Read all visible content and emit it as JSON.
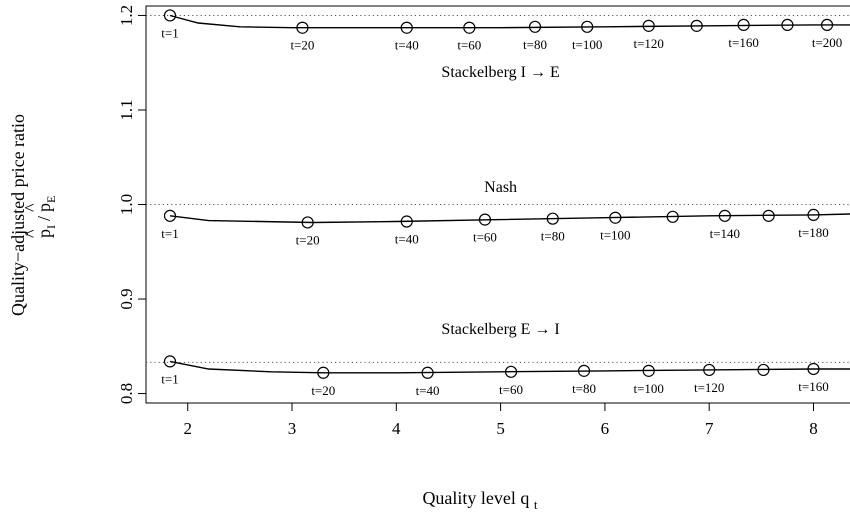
{
  "chart_data": {
    "type": "line",
    "xlabel": "Quality level",
    "xlabel_sub": "t",
    "xlabel_var": "q",
    "ylabel_line1": "Quality−adjusted price ratio",
    "ylabel_num": "p",
    "ylabel_num_sub": "I",
    "ylabel_den": "p",
    "ylabel_den_sub": "E",
    "hat_glyph": "^",
    "slash_glyph": "/",
    "xlim": [
      1.6,
      8.35
    ],
    "ylim": [
      0.79,
      1.21
    ],
    "xticks": [
      2,
      3,
      4,
      5,
      6,
      7,
      8
    ],
    "yticks": [
      0.8,
      0.9,
      1.0,
      1.1,
      1.2
    ],
    "ytick_labels": [
      "0.8",
      "0.9",
      "1.0",
      "1.1",
      "1.2"
    ],
    "reference_lines": [
      1.2,
      1.0,
      0.833
    ],
    "series": [
      {
        "name": "Stackelberg I → E",
        "ref": 1.2,
        "curve": [
          [
            1.83,
            1.2
          ],
          [
            2.1,
            1.192
          ],
          [
            2.5,
            1.188
          ],
          [
            3.0,
            1.187
          ],
          [
            3.5,
            1.187
          ],
          [
            4.0,
            1.187
          ],
          [
            5.0,
            1.187
          ],
          [
            6.0,
            1.188
          ],
          [
            7.0,
            1.189
          ],
          [
            8.0,
            1.19
          ],
          [
            8.35,
            1.19
          ]
        ],
        "points": [
          [
            1.83,
            1.2
          ],
          [
            3.1,
            1.187
          ],
          [
            4.1,
            1.187
          ],
          [
            4.7,
            1.187
          ],
          [
            5.33,
            1.188
          ],
          [
            5.83,
            1.188
          ],
          [
            6.42,
            1.189
          ],
          [
            6.88,
            1.189
          ],
          [
            7.33,
            1.19
          ],
          [
            7.75,
            1.19
          ],
          [
            8.13,
            1.19
          ]
        ],
        "labels": [
          {
            "x": 1.83,
            "y": 1.2,
            "text": "t=1"
          },
          {
            "x": 3.1,
            "y": 1.187,
            "text": "t=20"
          },
          {
            "x": 4.1,
            "y": 1.187,
            "text": "t=40"
          },
          {
            "x": 4.7,
            "y": 1.187,
            "text": "t=60"
          },
          {
            "x": 5.33,
            "y": 1.188,
            "text": "t=80"
          },
          {
            "x": 5.83,
            "y": 1.188,
            "text": "t=100"
          },
          {
            "x": 6.42,
            "y": 1.189,
            "text": "t=120"
          },
          {
            "x": 7.33,
            "y": 1.19,
            "text": "t=160"
          },
          {
            "x": 8.13,
            "y": 1.19,
            "text": "t=200"
          }
        ]
      },
      {
        "name": "Nash",
        "ref": 1.0,
        "curve": [
          [
            1.83,
            0.988
          ],
          [
            2.2,
            0.983
          ],
          [
            2.7,
            0.982
          ],
          [
            3.2,
            0.981
          ],
          [
            4.0,
            0.982
          ],
          [
            5.0,
            0.984
          ],
          [
            6.0,
            0.986
          ],
          [
            7.0,
            0.988
          ],
          [
            8.0,
            0.989
          ],
          [
            8.35,
            0.99
          ]
        ],
        "points": [
          [
            1.83,
            0.988
          ],
          [
            3.15,
            0.981
          ],
          [
            4.1,
            0.982
          ],
          [
            4.85,
            0.984
          ],
          [
            5.5,
            0.985
          ],
          [
            6.1,
            0.986
          ],
          [
            6.65,
            0.987
          ],
          [
            7.15,
            0.988
          ],
          [
            7.57,
            0.988
          ],
          [
            8.0,
            0.989
          ]
        ],
        "labels": [
          {
            "x": 1.83,
            "y": 0.988,
            "text": "t=1"
          },
          {
            "x": 3.15,
            "y": 0.981,
            "text": "t=20"
          },
          {
            "x": 4.1,
            "y": 0.982,
            "text": "t=40"
          },
          {
            "x": 4.85,
            "y": 0.984,
            "text": "t=60"
          },
          {
            "x": 5.5,
            "y": 0.985,
            "text": "t=80"
          },
          {
            "x": 6.1,
            "y": 0.986,
            "text": "t=100"
          },
          {
            "x": 7.15,
            "y": 0.988,
            "text": "t=140"
          },
          {
            "x": 8.0,
            "y": 0.989,
            "text": "t=180"
          }
        ]
      },
      {
        "name": "Stackelberg E → I",
        "ref": 0.833,
        "curve": [
          [
            1.83,
            0.834
          ],
          [
            2.2,
            0.826
          ],
          [
            2.8,
            0.823
          ],
          [
            3.3,
            0.822
          ],
          [
            4.0,
            0.822
          ],
          [
            5.0,
            0.823
          ],
          [
            6.0,
            0.824
          ],
          [
            7.0,
            0.825
          ],
          [
            8.0,
            0.826
          ],
          [
            8.35,
            0.826
          ]
        ],
        "points": [
          [
            1.83,
            0.834
          ],
          [
            3.3,
            0.822
          ],
          [
            4.3,
            0.822
          ],
          [
            5.1,
            0.823
          ],
          [
            5.8,
            0.824
          ],
          [
            6.42,
            0.824
          ],
          [
            7.0,
            0.825
          ],
          [
            7.52,
            0.825
          ],
          [
            8.0,
            0.826
          ]
        ],
        "labels": [
          {
            "x": 1.83,
            "y": 0.834,
            "text": "t=1"
          },
          {
            "x": 3.3,
            "y": 0.822,
            "text": "t=20"
          },
          {
            "x": 4.3,
            "y": 0.822,
            "text": "t=40"
          },
          {
            "x": 5.1,
            "y": 0.823,
            "text": "t=60"
          },
          {
            "x": 5.8,
            "y": 0.824,
            "text": "t=80"
          },
          {
            "x": 6.42,
            "y": 0.824,
            "text": "t=100"
          },
          {
            "x": 7.0,
            "y": 0.825,
            "text": "t=120"
          },
          {
            "x": 8.0,
            "y": 0.826,
            "text": "t=160"
          }
        ]
      }
    ],
    "annotations": [
      {
        "text": "Stackelberg I → E",
        "x": 5.0,
        "y": 1.135
      },
      {
        "text": "Nash",
        "x": 5.0,
        "y": 1.013
      },
      {
        "text": "Stackelberg E → I",
        "x": 5.0,
        "y": 0.863
      }
    ]
  }
}
